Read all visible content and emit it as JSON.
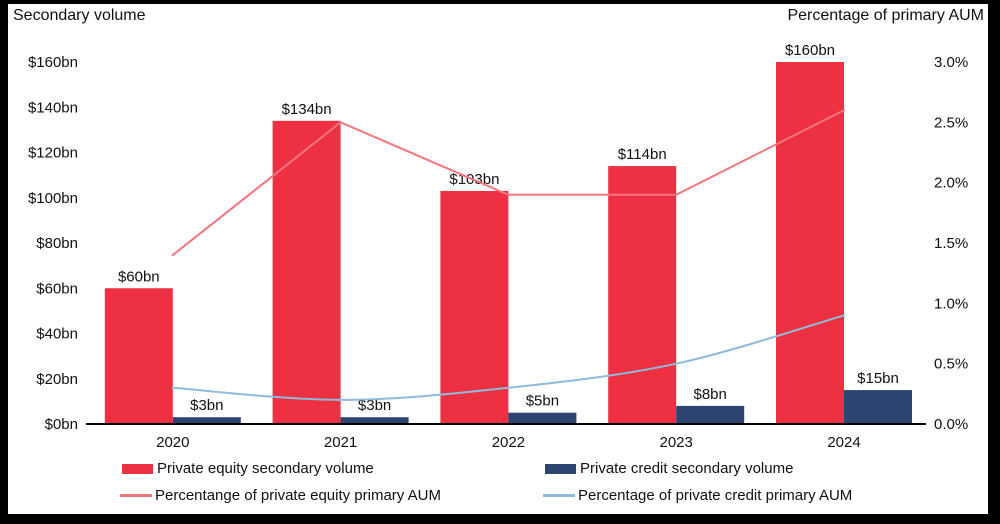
{
  "titles": {
    "left": "Secondary volume",
    "right": "Percentage of primary AUM"
  },
  "colors": {
    "pe_bar": "#EE3142",
    "credit_bar": "#2E4470",
    "pe_line": "#F4757F",
    "credit_line": "#8FBADC",
    "axis": "#000000",
    "text": "#111111",
    "frame": "#000000",
    "background": "#FFFFFF"
  },
  "chart_data": {
    "type": "bar",
    "subtype": "grouped bars with two overlay line series (dual axis)",
    "categories": [
      "2020",
      "2021",
      "2022",
      "2023",
      "2024"
    ],
    "bar_series": [
      {
        "name": "Private equity secondary volume",
        "axis": "left",
        "unit": "$bn",
        "values": [
          60,
          134,
          103,
          114,
          160
        ],
        "labels": [
          "$60bn",
          "$134bn",
          "$103bn",
          "$114bn",
          "$160bn"
        ],
        "color_key": "pe_bar"
      },
      {
        "name": "Private credit secondary volume",
        "axis": "left",
        "unit": "$bn",
        "values": [
          3,
          3,
          5,
          8,
          15
        ],
        "labels": [
          "$3bn",
          "$3bn",
          "$5bn",
          "$8bn",
          "$15bn"
        ],
        "color_key": "credit_bar"
      }
    ],
    "line_series": [
      {
        "name": "Percentange of private equity primary AUM",
        "axis": "right",
        "unit": "%",
        "values": [
          1.4,
          2.5,
          1.9,
          1.9,
          2.6
        ],
        "color_key": "pe_line",
        "style": "straight"
      },
      {
        "name": "Percentage of private credit primary AUM",
        "axis": "right",
        "unit": "%",
        "values": [
          0.3,
          0.2,
          0.3,
          0.5,
          0.9
        ],
        "color_key": "credit_line",
        "style": "smooth"
      }
    ],
    "left_axis": {
      "title": "Secondary volume",
      "max": 160,
      "ticks": [
        {
          "label": "$0bn",
          "value": 0
        },
        {
          "label": "$20bn",
          "value": 20
        },
        {
          "label": "$40bn",
          "value": 40
        },
        {
          "label": "$60bn",
          "value": 60
        },
        {
          "label": "$80bn",
          "value": 80
        },
        {
          "label": "$100bn",
          "value": 100
        },
        {
          "label": "$120bn",
          "value": 120
        },
        {
          "label": "$140bn",
          "value": 140
        },
        {
          "label": "$160bn",
          "value": 160
        }
      ]
    },
    "right_axis": {
      "title": "Percentage of primary AUM",
      "max": 3.0,
      "ticks": [
        {
          "label": "0.0%",
          "value": 0.0
        },
        {
          "label": "0.5%",
          "value": 0.5
        },
        {
          "label": "1.0%",
          "value": 1.0
        },
        {
          "label": "1.5%",
          "value": 1.5
        },
        {
          "label": "2.0%",
          "value": 2.0
        },
        {
          "label": "2.5%",
          "value": 2.5
        },
        {
          "label": "3.0%",
          "value": 3.0
        }
      ]
    },
    "grid": false,
    "legend_position": "bottom"
  },
  "legend": {
    "items": [
      {
        "label": "Private equity secondary volume",
        "color_key": "pe_bar",
        "swatch": "bar"
      },
      {
        "label": "Percentange of private equity primary AUM",
        "color_key": "pe_line",
        "swatch": "line"
      },
      {
        "label": "Private credit secondary volume",
        "color_key": "credit_bar",
        "swatch": "bar"
      },
      {
        "label": "Percentage of private credit primary AUM",
        "color_key": "credit_line",
        "swatch": "line"
      }
    ]
  }
}
